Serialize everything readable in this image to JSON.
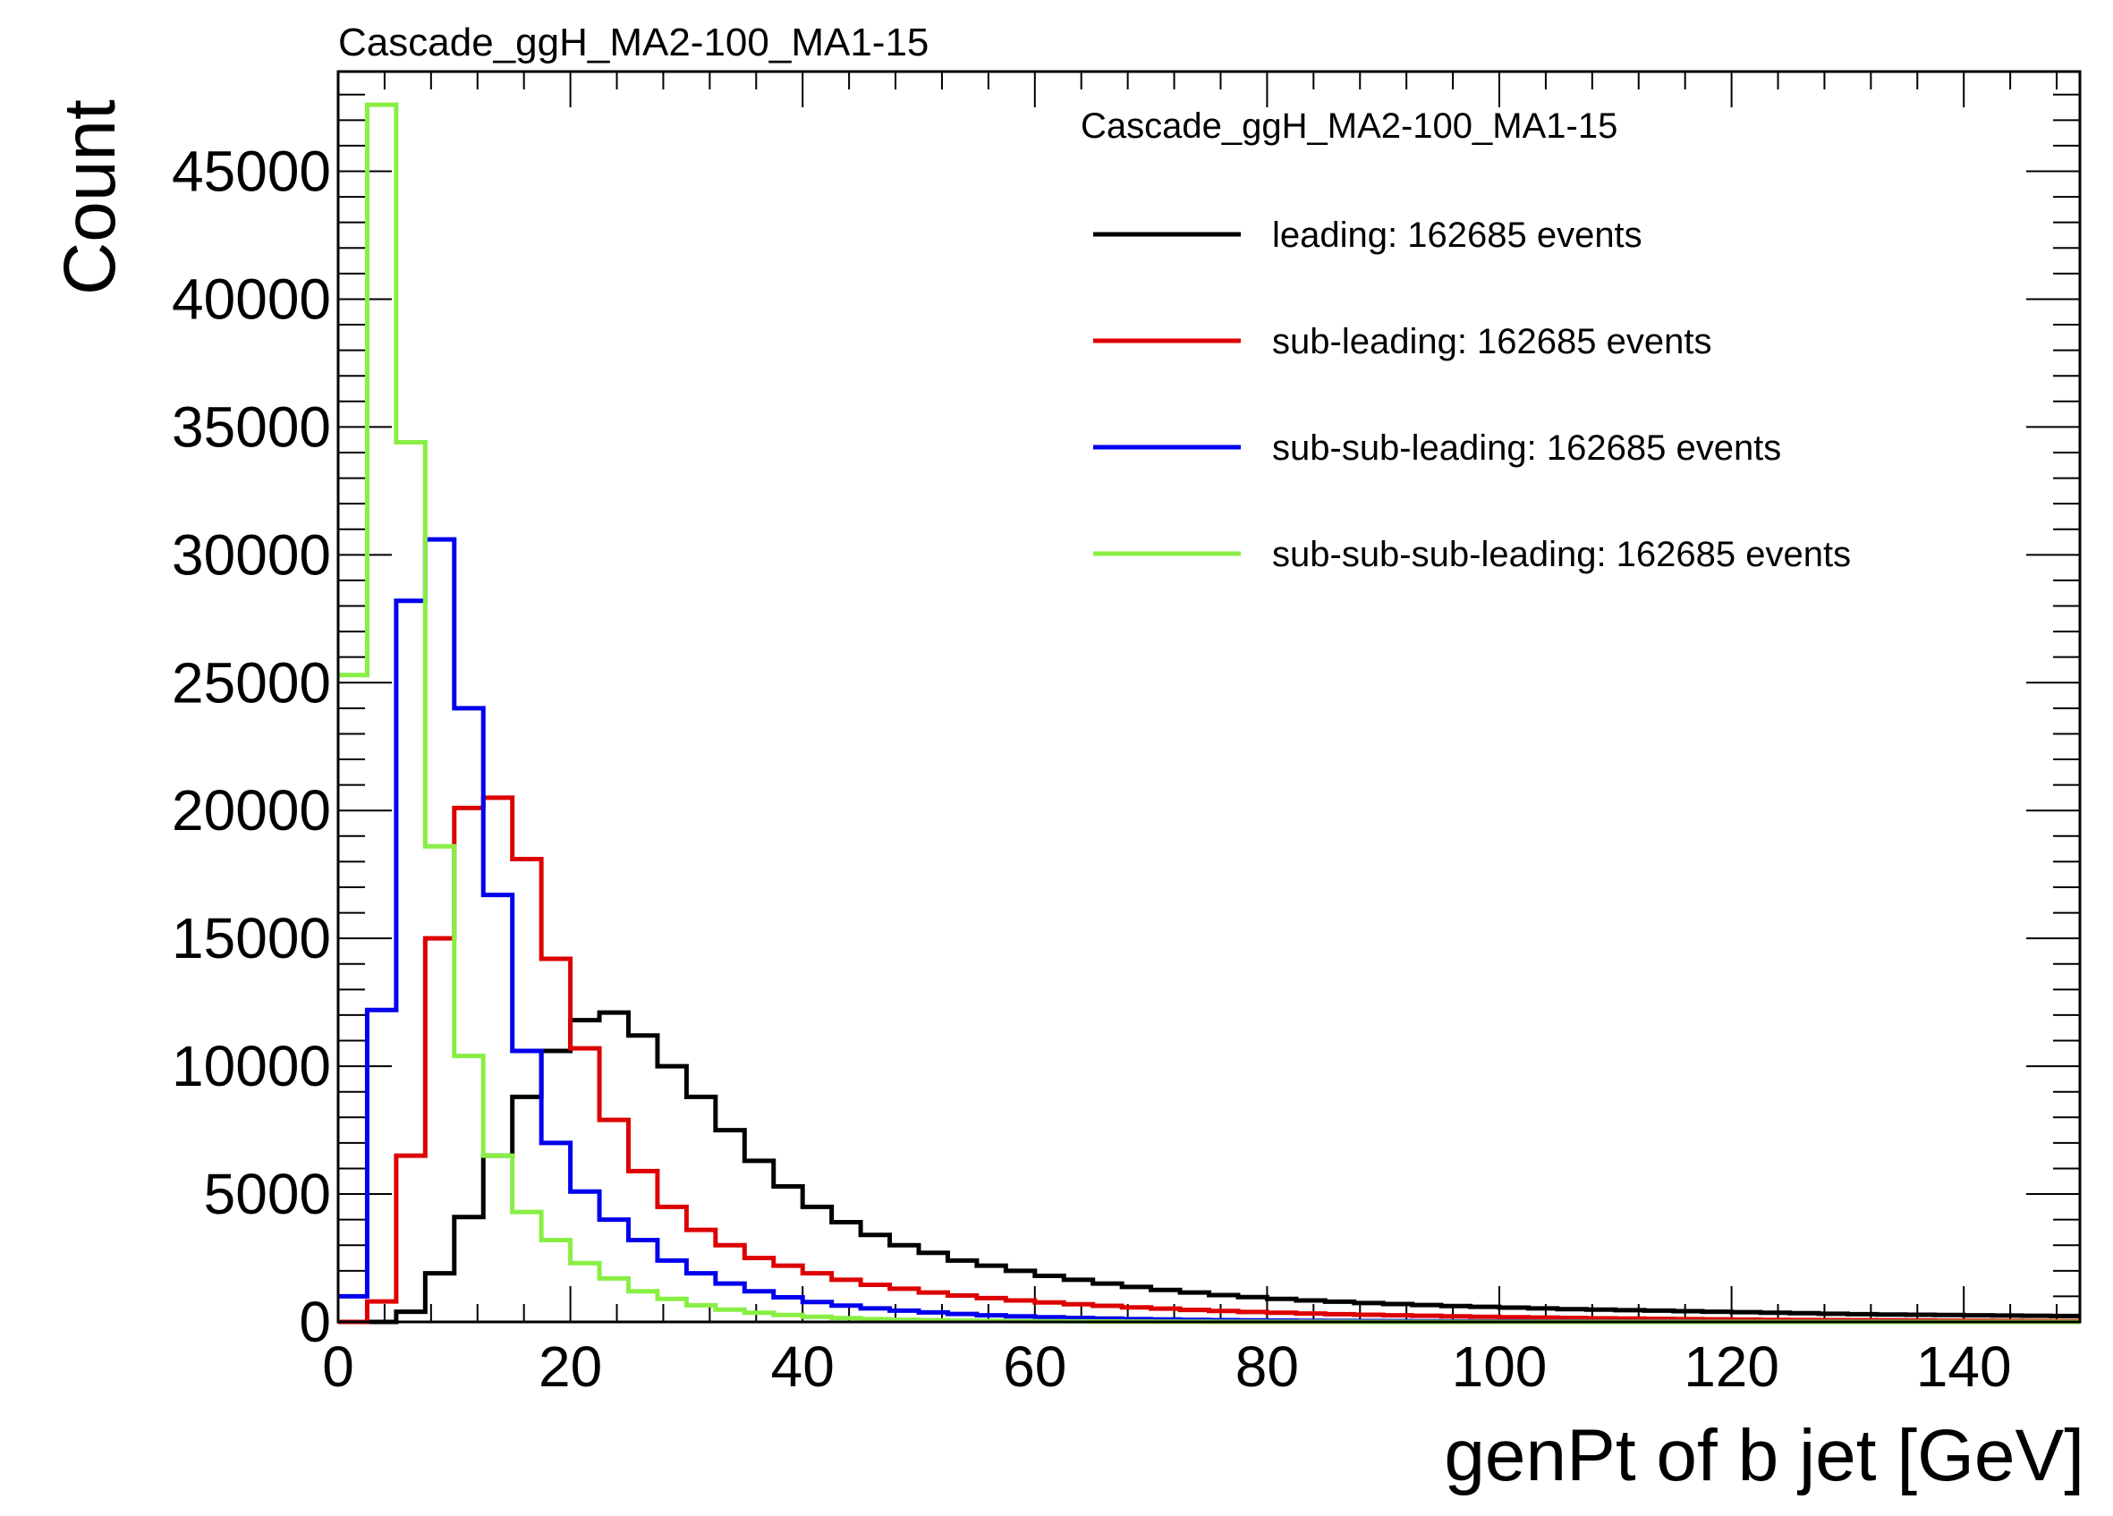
{
  "chart_data": {
    "type": "histogram",
    "title": "Cascade_ggH_MA2-100_MA1-15",
    "xlabel": "genPt of b jet [GeV]",
    "ylabel": "Count",
    "xlim": [
      0,
      150
    ],
    "ylim": [
      0,
      48900
    ],
    "x_ticks": [
      0,
      20,
      40,
      60,
      80,
      100,
      120,
      140
    ],
    "y_ticks": [
      0,
      5000,
      10000,
      15000,
      20000,
      25000,
      30000,
      35000,
      40000,
      45000
    ],
    "bin_width": 2.5,
    "bin_edges_start": 0,
    "legend": {
      "header": "Cascade_ggH_MA2-100_MA1-15",
      "placement": "top-right"
    },
    "series": [
      {
        "name": "leading",
        "label": "leading: 162685 events",
        "color": "#000000",
        "values": [
          0,
          0,
          400,
          1900,
          4100,
          6500,
          8800,
          10600,
          11800,
          12100,
          11200,
          10000,
          8800,
          7500,
          6300,
          5300,
          4500,
          3900,
          3400,
          3000,
          2700,
          2400,
          2200,
          2000,
          1800,
          1650,
          1500,
          1370,
          1250,
          1150,
          1050,
          970,
          900,
          840,
          790,
          740,
          700,
          660,
          620,
          590,
          560,
          530,
          500,
          480,
          460,
          440,
          420,
          400,
          380,
          360,
          340,
          320,
          300,
          290,
          280,
          270,
          260,
          250,
          240,
          230
        ]
      },
      {
        "name": "sub-leading",
        "label": "sub-leading: 162685 events",
        "color": "#dd0000",
        "values": [
          0,
          800,
          6500,
          15000,
          20100,
          20500,
          18100,
          14200,
          10700,
          7900,
          5900,
          4500,
          3600,
          3000,
          2500,
          2200,
          1900,
          1650,
          1450,
          1300,
          1150,
          1030,
          930,
          840,
          760,
          690,
          630,
          570,
          520,
          470,
          430,
          390,
          360,
          330,
          300,
          280,
          260,
          240,
          220,
          200,
          185,
          170,
          155,
          140,
          130,
          120,
          110,
          100,
          90,
          80,
          75,
          70,
          65,
          60,
          55,
          50,
          45,
          40,
          35,
          30
        ]
      },
      {
        "name": "sub-sub-leading",
        "label": "sub-sub-leading: 162685 events",
        "color": "#0000ee",
        "values": [
          1000,
          12200,
          28200,
          30600,
          24000,
          16700,
          10600,
          7000,
          5100,
          4000,
          3200,
          2400,
          1900,
          1500,
          1200,
          960,
          780,
          640,
          530,
          440,
          370,
          310,
          260,
          220,
          185,
          155,
          130,
          110,
          95,
          80,
          70,
          60,
          52,
          45,
          40,
          35,
          30,
          26,
          22,
          19,
          16,
          14,
          12,
          10,
          9,
          8,
          7,
          6,
          5,
          5,
          4,
          4,
          3,
          3,
          3,
          2,
          2,
          2,
          2,
          2
        ]
      },
      {
        "name": "sub-sub-sub-leading",
        "label": "sub-sub-sub-leading: 162685 events",
        "color": "#88ee44",
        "values": [
          25300,
          47600,
          34400,
          18600,
          10400,
          6500,
          4300,
          3200,
          2300,
          1700,
          1200,
          900,
          650,
          480,
          360,
          270,
          200,
          150,
          110,
          85,
          65,
          50,
          40,
          30,
          25,
          20,
          16,
          12,
          10,
          8,
          6,
          5,
          4,
          3,
          3,
          2,
          2,
          2,
          1,
          1,
          1,
          1,
          1,
          1,
          1,
          0,
          0,
          0,
          0,
          0,
          0,
          0,
          0,
          0,
          0,
          0,
          0,
          0,
          0,
          0
        ]
      }
    ]
  }
}
